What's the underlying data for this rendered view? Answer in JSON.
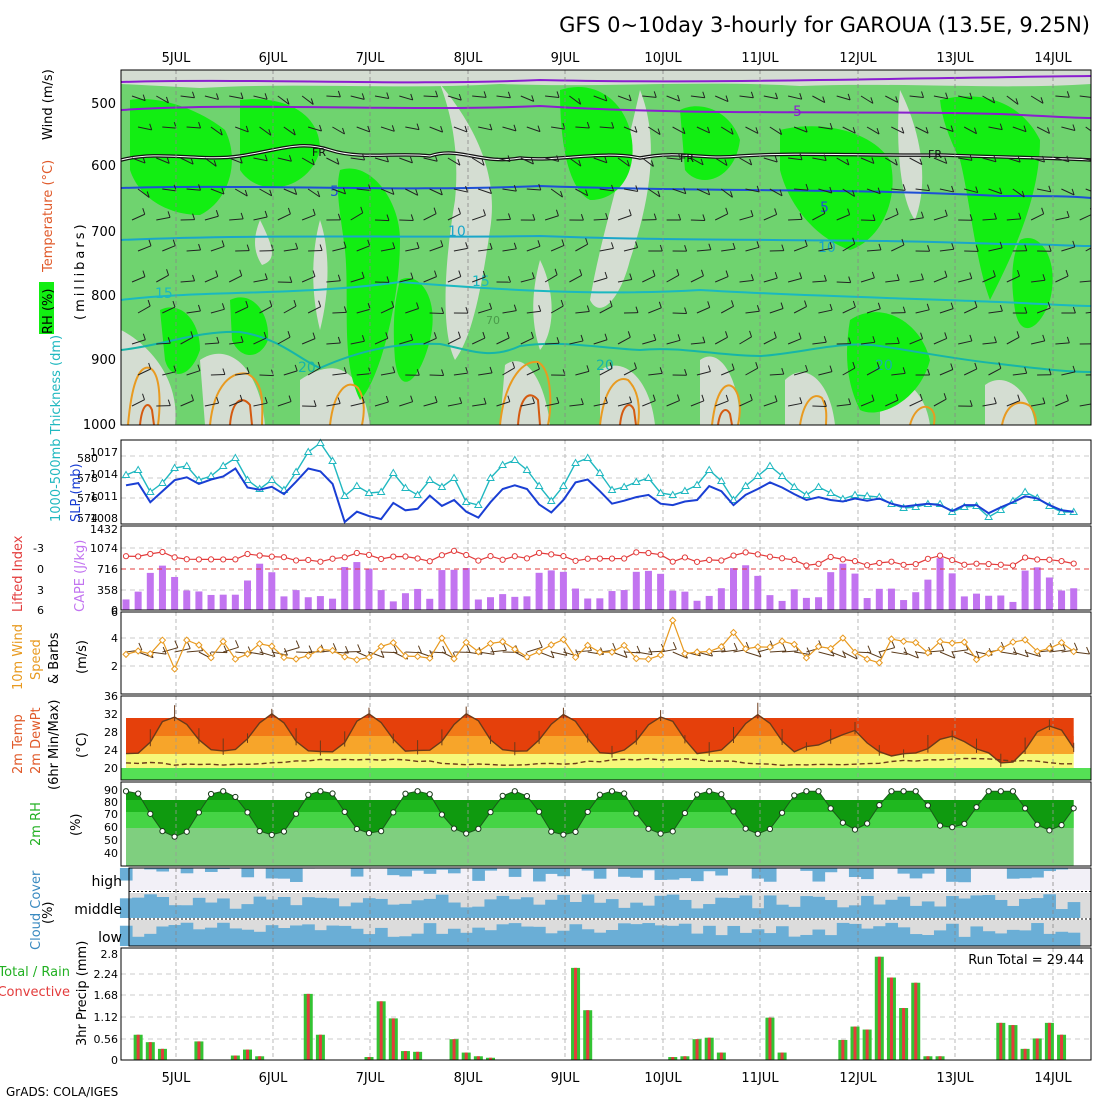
{
  "title": "GFS 0~10day 3-hourly for GAROUA (13.5E, 9.25N)",
  "footer": "GrADS: COLA/IGES",
  "run_total_label": "Run Total = 29.44",
  "colors": {
    "rh_light": "#d4ddd2",
    "rh_mid": "#6fd36f",
    "rh_bright": "#12ee12",
    "temp_purple": "#8a1ecf",
    "temp_blue": "#1e4fd6",
    "temp_cyan": "#1aa6c9",
    "temp_teal": "#16b5a8",
    "temp_orange": "#e89a20",
    "freezing": "#111111",
    "slp": "#1a3fd4",
    "thickness": "#20b8c0",
    "lifted_index": "#e33c3c",
    "cape": "#c274f0",
    "wind_speed": "#e89a20",
    "barbs": "#5a3a1a",
    "precip_total": "#33c333",
    "precip_conv": "#e33c3c",
    "cloud": "#6aaed6"
  },
  "axes": {
    "dates_top": [
      "5JUL",
      "6JUL",
      "7JUL",
      "8JUL",
      "9JUL",
      "10JUL",
      "11JUL",
      "12JUL",
      "13JUL",
      "14JUL"
    ],
    "dates_bottom": [
      "5JUL",
      "6JUL",
      "7JUL",
      "8JUL",
      "9JUL",
      "10JUL",
      "11JUL",
      "12JUL",
      "13JUL",
      "14JUL"
    ]
  },
  "panels": {
    "upper_air": {
      "labels": {
        "rh": "RH (%)",
        "temperature": "Temperature (°C)",
        "wind": "Wind (m/s)",
        "pressure": "(millibars)"
      },
      "yticks": [
        "500",
        "600",
        "700",
        "800",
        "900",
        "1000"
      ],
      "contour_labels": [
        "-5",
        "FR",
        "FR",
        "FR",
        "5",
        "5",
        "10",
        "10",
        "15",
        "15",
        "20",
        "20",
        "20",
        "70"
      ]
    },
    "slp_thickness": {
      "labels": {
        "thickness": "1000-500mb Thickness (dm)",
        "slp": "SLP (mb)"
      },
      "yticks_left": [
        "580",
        "578",
        "576",
        "574"
      ],
      "yticks_right": [
        "1017",
        "1014",
        "1011",
        "1008"
      ]
    },
    "li_cape": {
      "labels": {
        "li": "Lifted Index",
        "cape": "CAPE (J/kg)"
      },
      "yticks_left": [
        "-3",
        "0",
        "3",
        "6"
      ],
      "yticks_right": [
        "1432",
        "1074",
        "716",
        "358",
        "0"
      ]
    },
    "wind10m": {
      "labels": {
        "line1": "10m Wind",
        "speed": "Speed",
        "barbs": "& Barbs",
        "unit": "(m/s)"
      },
      "yticks": [
        "6",
        "4",
        "2"
      ]
    },
    "temp2m": {
      "labels": {
        "line1": "2m Temp",
        "line2": "2m DewPt",
        "line3": "(6hr Min/Max)",
        "unit": "(°C)"
      },
      "yticks": [
        "36",
        "32",
        "28",
        "24",
        "20"
      ]
    },
    "rh2m": {
      "labels": {
        "line1": "2m RH",
        "unit": "(%)"
      },
      "yticks": [
        "90",
        "80",
        "70",
        "60",
        "50",
        "40"
      ]
    },
    "cloud": {
      "labels": {
        "line1": "Cloud Cover",
        "unit": "(%)"
      },
      "levels": [
        "high",
        "middle",
        "low"
      ]
    },
    "precip": {
      "labels": {
        "line1": "Total / Rain",
        "line2": "Convective",
        "line3": "3hr Precip (mm)"
      },
      "yticks": [
        "2.8",
        "2.24",
        "1.68",
        "1.12",
        "0.56",
        "0"
      ]
    }
  },
  "chart_data": [
    {
      "type": "line",
      "title": "",
      "panel": "1000-500mb Thickness and SLP",
      "x": [
        "4JUL18Z",
        "4JUL21Z",
        "5JUL00Z",
        "5JUL03Z",
        "5JUL06Z",
        "5JUL09Z",
        "5JUL12Z",
        "5JUL15Z",
        "5JUL18Z",
        "5JUL21Z",
        "6JUL00Z",
        "6JUL03Z",
        "6JUL06Z",
        "6JUL09Z",
        "6JUL12Z",
        "6JUL15Z",
        "6JUL18Z",
        "6JUL21Z",
        "7JUL00Z",
        "7JUL03Z",
        "7JUL06Z",
        "7JUL09Z",
        "7JUL12Z",
        "7JUL15Z",
        "7JUL18Z",
        "7JUL21Z",
        "8JUL00Z",
        "8JUL03Z",
        "8JUL06Z",
        "8JUL09Z",
        "8JUL12Z",
        "8JUL15Z",
        "8JUL18Z",
        "8JUL21Z",
        "9JUL00Z",
        "9JUL03Z",
        "9JUL06Z",
        "9JUL09Z",
        "9JUL12Z",
        "9JUL15Z",
        "9JUL18Z",
        "9JUL21Z",
        "10JUL00Z",
        "10JUL03Z",
        "10JUL06Z",
        "10JUL09Z",
        "10JUL12Z",
        "10JUL15Z",
        "10JUL18Z",
        "10JUL21Z",
        "11JUL00Z",
        "11JUL03Z",
        "11JUL06Z",
        "11JUL09Z",
        "11JUL12Z",
        "11JUL15Z",
        "11JUL18Z",
        "11JUL21Z",
        "12JUL00Z",
        "12JUL03Z",
        "12JUL06Z",
        "12JUL09Z",
        "12JUL12Z",
        "12JUL15Z",
        "12JUL18Z",
        "12JUL21Z",
        "13JUL00Z",
        "13JUL03Z",
        "13JUL06Z",
        "13JUL09Z",
        "13JUL12Z",
        "13JUL15Z",
        "13JUL18Z",
        "13JUL21Z",
        "14JUL00Z",
        "14JUL03Z",
        "14JUL06Z",
        "14JUL09Z",
        "14JUL12Z"
      ],
      "series": [
        {
          "name": "1000-500mb Thickness (dm)",
          "values": [
            578.9,
            579.4,
            577.2,
            578.1,
            579.6,
            579.8,
            578.4,
            578.8,
            579.8,
            580.6,
            578.4,
            577.5,
            578.4,
            577.4,
            579.2,
            581.2,
            582.1,
            580.3,
            576.8,
            577.8,
            577.1,
            577.2,
            579.1,
            577.6,
            576.9,
            578.4,
            577.7,
            578.6,
            576.2,
            575.9,
            578.6,
            579.9,
            580.4,
            579.4,
            577.8,
            576.3,
            577.8,
            580.1,
            580.6,
            579.1,
            577.4,
            577.7,
            578.2,
            578.6,
            577.1,
            576.9,
            577.3,
            577.9,
            579.4,
            578.3,
            576.4,
            577.8,
            578.8,
            579.8,
            578.8,
            577.7,
            576.9,
            577.7,
            577.1,
            576.5,
            576.9,
            576.8,
            576.7,
            576.0,
            575.6,
            575.7,
            576.0,
            576.0,
            575.2,
            575.7,
            575.8,
            574.7,
            575.4,
            576.3,
            577.2,
            576.6,
            575.8,
            575.2,
            575.2
          ]
        },
        {
          "name": "SLP (mb)",
          "values": [
            1013.0,
            1013.3,
            1010.7,
            1012.2,
            1013.7,
            1014.1,
            1013.2,
            1013.8,
            1014.2,
            1015.3,
            1012.7,
            1012.4,
            1012.8,
            1011.8,
            1013.5,
            1015.3,
            1014.9,
            1013.2,
            1008.0,
            1009.4,
            1008.8,
            1008.4,
            1010.6,
            1009.6,
            1009.8,
            1011.6,
            1010.2,
            1011.0,
            1009.4,
            1008.6,
            1010.7,
            1012.5,
            1013.0,
            1012.5,
            1010.4,
            1009.3,
            1011.0,
            1013.4,
            1013.8,
            1012.2,
            1010.5,
            1010.9,
            1011.4,
            1011.7,
            1010.5,
            1010.3,
            1010.8,
            1011.0,
            1012.9,
            1012.2,
            1010.3,
            1011.7,
            1012.5,
            1013.4,
            1012.7,
            1011.8,
            1011.0,
            1011.4,
            1011.0,
            1010.8,
            1011.2,
            1010.9,
            1011.2,
            1010.5,
            1010.1,
            1010.3,
            1010.5,
            1010.3,
            1009.5,
            1010.3,
            1010.3,
            1009.2,
            1010.0,
            1010.7,
            1011.5,
            1011.2,
            1010.3,
            1009.6,
            1009.4
          ]
        }
      ]
    }
  ]
}
